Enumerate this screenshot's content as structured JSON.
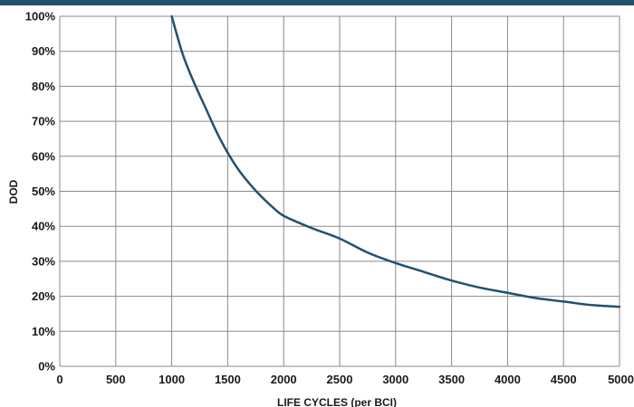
{
  "chart_data": {
    "type": "line",
    "title": "",
    "xlabel": "LIFE CYCLES (per BCI)",
    "ylabel": "DOD",
    "xlim": [
      0,
      5000
    ],
    "ylim": [
      0,
      100
    ],
    "x_ticks": [
      "0",
      "500",
      "1000",
      "1500",
      "2000",
      "2500",
      "3000",
      "3500",
      "4000",
      "4500",
      "5000"
    ],
    "y_ticks": [
      "0%",
      "10%",
      "20%",
      "30%",
      "40%",
      "50%",
      "60%",
      "70%",
      "80%",
      "90%",
      "100%"
    ],
    "grid": true,
    "series": [
      {
        "color": "#24506f",
        "x": [
          1000,
          1100,
          1200,
          1300,
          1400,
          1500,
          1600,
          1700,
          1800,
          1900,
          2000,
          2250,
          2500,
          2750,
          3000,
          3250,
          3500,
          3750,
          4000,
          4250,
          4500,
          4750,
          5000
        ],
        "y": [
          100,
          89,
          81,
          74,
          67,
          61,
          56,
          52,
          48.5,
          45.5,
          43,
          39.5,
          36.5,
          32.5,
          29.5,
          27,
          24.5,
          22.5,
          21,
          19.5,
          18.5,
          17.5,
          17
        ]
      }
    ]
  },
  "colors": {
    "accent": "#24506f",
    "grid": "#8a8a8a"
  }
}
